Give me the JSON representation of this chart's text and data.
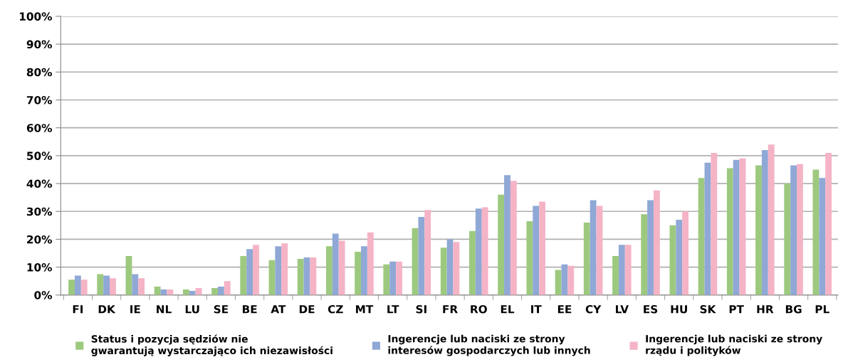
{
  "chart_data": {
    "type": "bar",
    "categories": [
      "FI",
      "DK",
      "IE",
      "NL",
      "LU",
      "SE",
      "BE",
      "AT",
      "DE",
      "CZ",
      "MT",
      "LT",
      "SI",
      "FR",
      "RO",
      "EL",
      "IT",
      "EE",
      "CY",
      "LV",
      "ES",
      "HU",
      "SK",
      "PT",
      "HR",
      "BG",
      "PL"
    ],
    "series": [
      {
        "name": "Status i pozycja sędziów nie\ngwarantują wystarczająco ich niezawisłości",
        "color": "#9dc97f",
        "values": [
          5.5,
          7.5,
          14,
          3,
          2,
          2.5,
          14,
          12.5,
          13,
          17.5,
          15.5,
          11,
          24,
          17,
          23,
          36,
          26.5,
          9,
          26,
          14,
          29,
          25,
          42,
          45.5,
          46.5,
          40,
          45
        ]
      },
      {
        "name": "Ingerencje lub naciski ze strony\ninteresów gospodarczych lub innych",
        "color": "#8fa8d6",
        "values": [
          7,
          7,
          7.5,
          2,
          1.5,
          3,
          16.5,
          17.5,
          13.5,
          22,
          17.5,
          12,
          28,
          20,
          31,
          43,
          32,
          11,
          34,
          18,
          34,
          27,
          47.5,
          48.5,
          52,
          46.5,
          42
        ]
      },
      {
        "name": "Ingerencje lub naciski ze strony\nrządu i polityków",
        "color": "#f5b3c6",
        "values": [
          5.5,
          6,
          6,
          2,
          2.5,
          5,
          18,
          18.5,
          13.5,
          19.5,
          22.5,
          12,
          30.5,
          19,
          31.5,
          41,
          33.5,
          10.5,
          32,
          18,
          37.5,
          30,
          51,
          49,
          54,
          47,
          51
        ]
      }
    ],
    "ylim": [
      0,
      100
    ],
    "yticks": [
      {
        "value": 0,
        "label": "0%"
      },
      {
        "value": 10,
        "label": "10%"
      },
      {
        "value": 20,
        "label": "20%"
      },
      {
        "value": 30,
        "label": "30%"
      },
      {
        "value": 40,
        "label": "40%"
      },
      {
        "value": 50,
        "label": "50%"
      },
      {
        "value": 60,
        "label": "60%"
      },
      {
        "value": 70,
        "label": "70%"
      },
      {
        "value": 80,
        "label": "80%"
      },
      {
        "value": 90,
        "label": "90%"
      },
      {
        "value": 100,
        "label": "100%"
      }
    ],
    "grid": "y",
    "legend": "bottom"
  }
}
